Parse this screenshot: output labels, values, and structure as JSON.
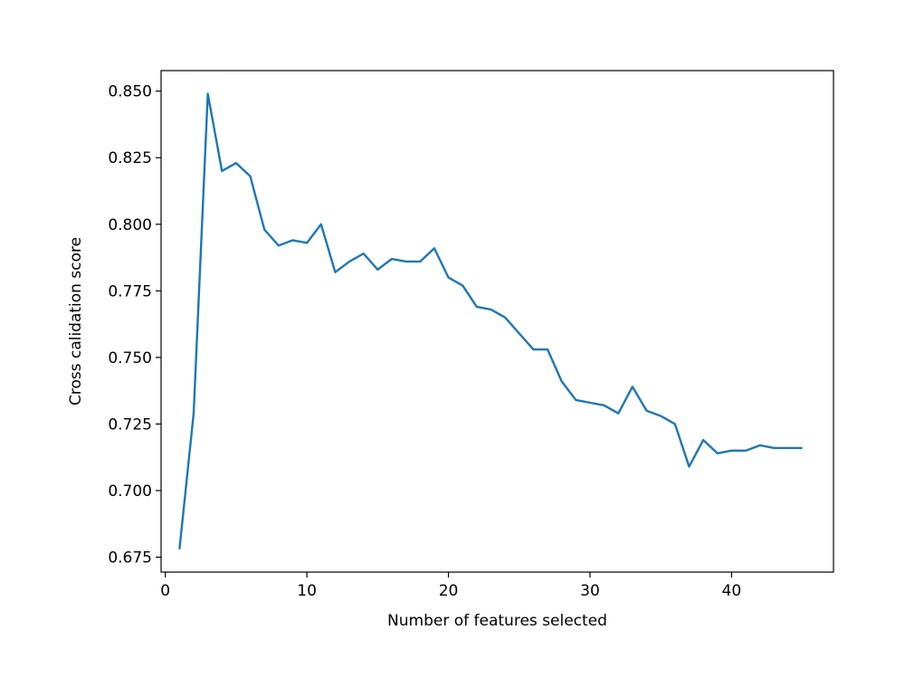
{
  "chart_data": {
    "type": "line",
    "title": "",
    "xlabel": "Number of features selected",
    "ylabel": "Cross calidation score",
    "xlim": [
      -0.3,
      47.2
    ],
    "ylim": [
      0.6694,
      0.8577
    ],
    "xticks": [
      0,
      10,
      20,
      30,
      40
    ],
    "xtick_labels": [
      "0",
      "10",
      "20",
      "30",
      "40"
    ],
    "yticks": [
      0.675,
      0.7,
      0.725,
      0.75,
      0.775,
      0.8,
      0.825,
      0.85
    ],
    "ytick_labels": [
      "0.675",
      "0.700",
      "0.725",
      "0.750",
      "0.775",
      "0.800",
      "0.825",
      "0.850"
    ],
    "grid": false,
    "line_color": "#1f77b4",
    "series": [
      {
        "x": [
          1,
          2,
          3,
          4,
          5,
          6,
          7,
          8,
          9,
          10,
          11,
          12,
          13,
          14,
          15,
          16,
          17,
          18,
          19,
          20,
          21,
          22,
          23,
          24,
          25,
          26,
          27,
          28,
          29,
          30,
          31,
          32,
          33,
          34,
          35,
          36,
          37,
          38,
          39,
          40,
          41,
          42,
          43,
          44,
          45
        ],
        "values": [
          0.678,
          0.729,
          0.849,
          0.82,
          0.823,
          0.818,
          0.798,
          0.792,
          0.794,
          0.793,
          0.8,
          0.782,
          0.786,
          0.789,
          0.783,
          0.787,
          0.786,
          0.786,
          0.791,
          0.78,
          0.777,
          0.769,
          0.768,
          0.765,
          0.759,
          0.753,
          0.753,
          0.741,
          0.734,
          0.733,
          0.732,
          0.729,
          0.739,
          0.73,
          0.728,
          0.725,
          0.709,
          0.719,
          0.714,
          0.715,
          0.715,
          0.717,
          0.716,
          0.716,
          0.716
        ]
      }
    ]
  }
}
